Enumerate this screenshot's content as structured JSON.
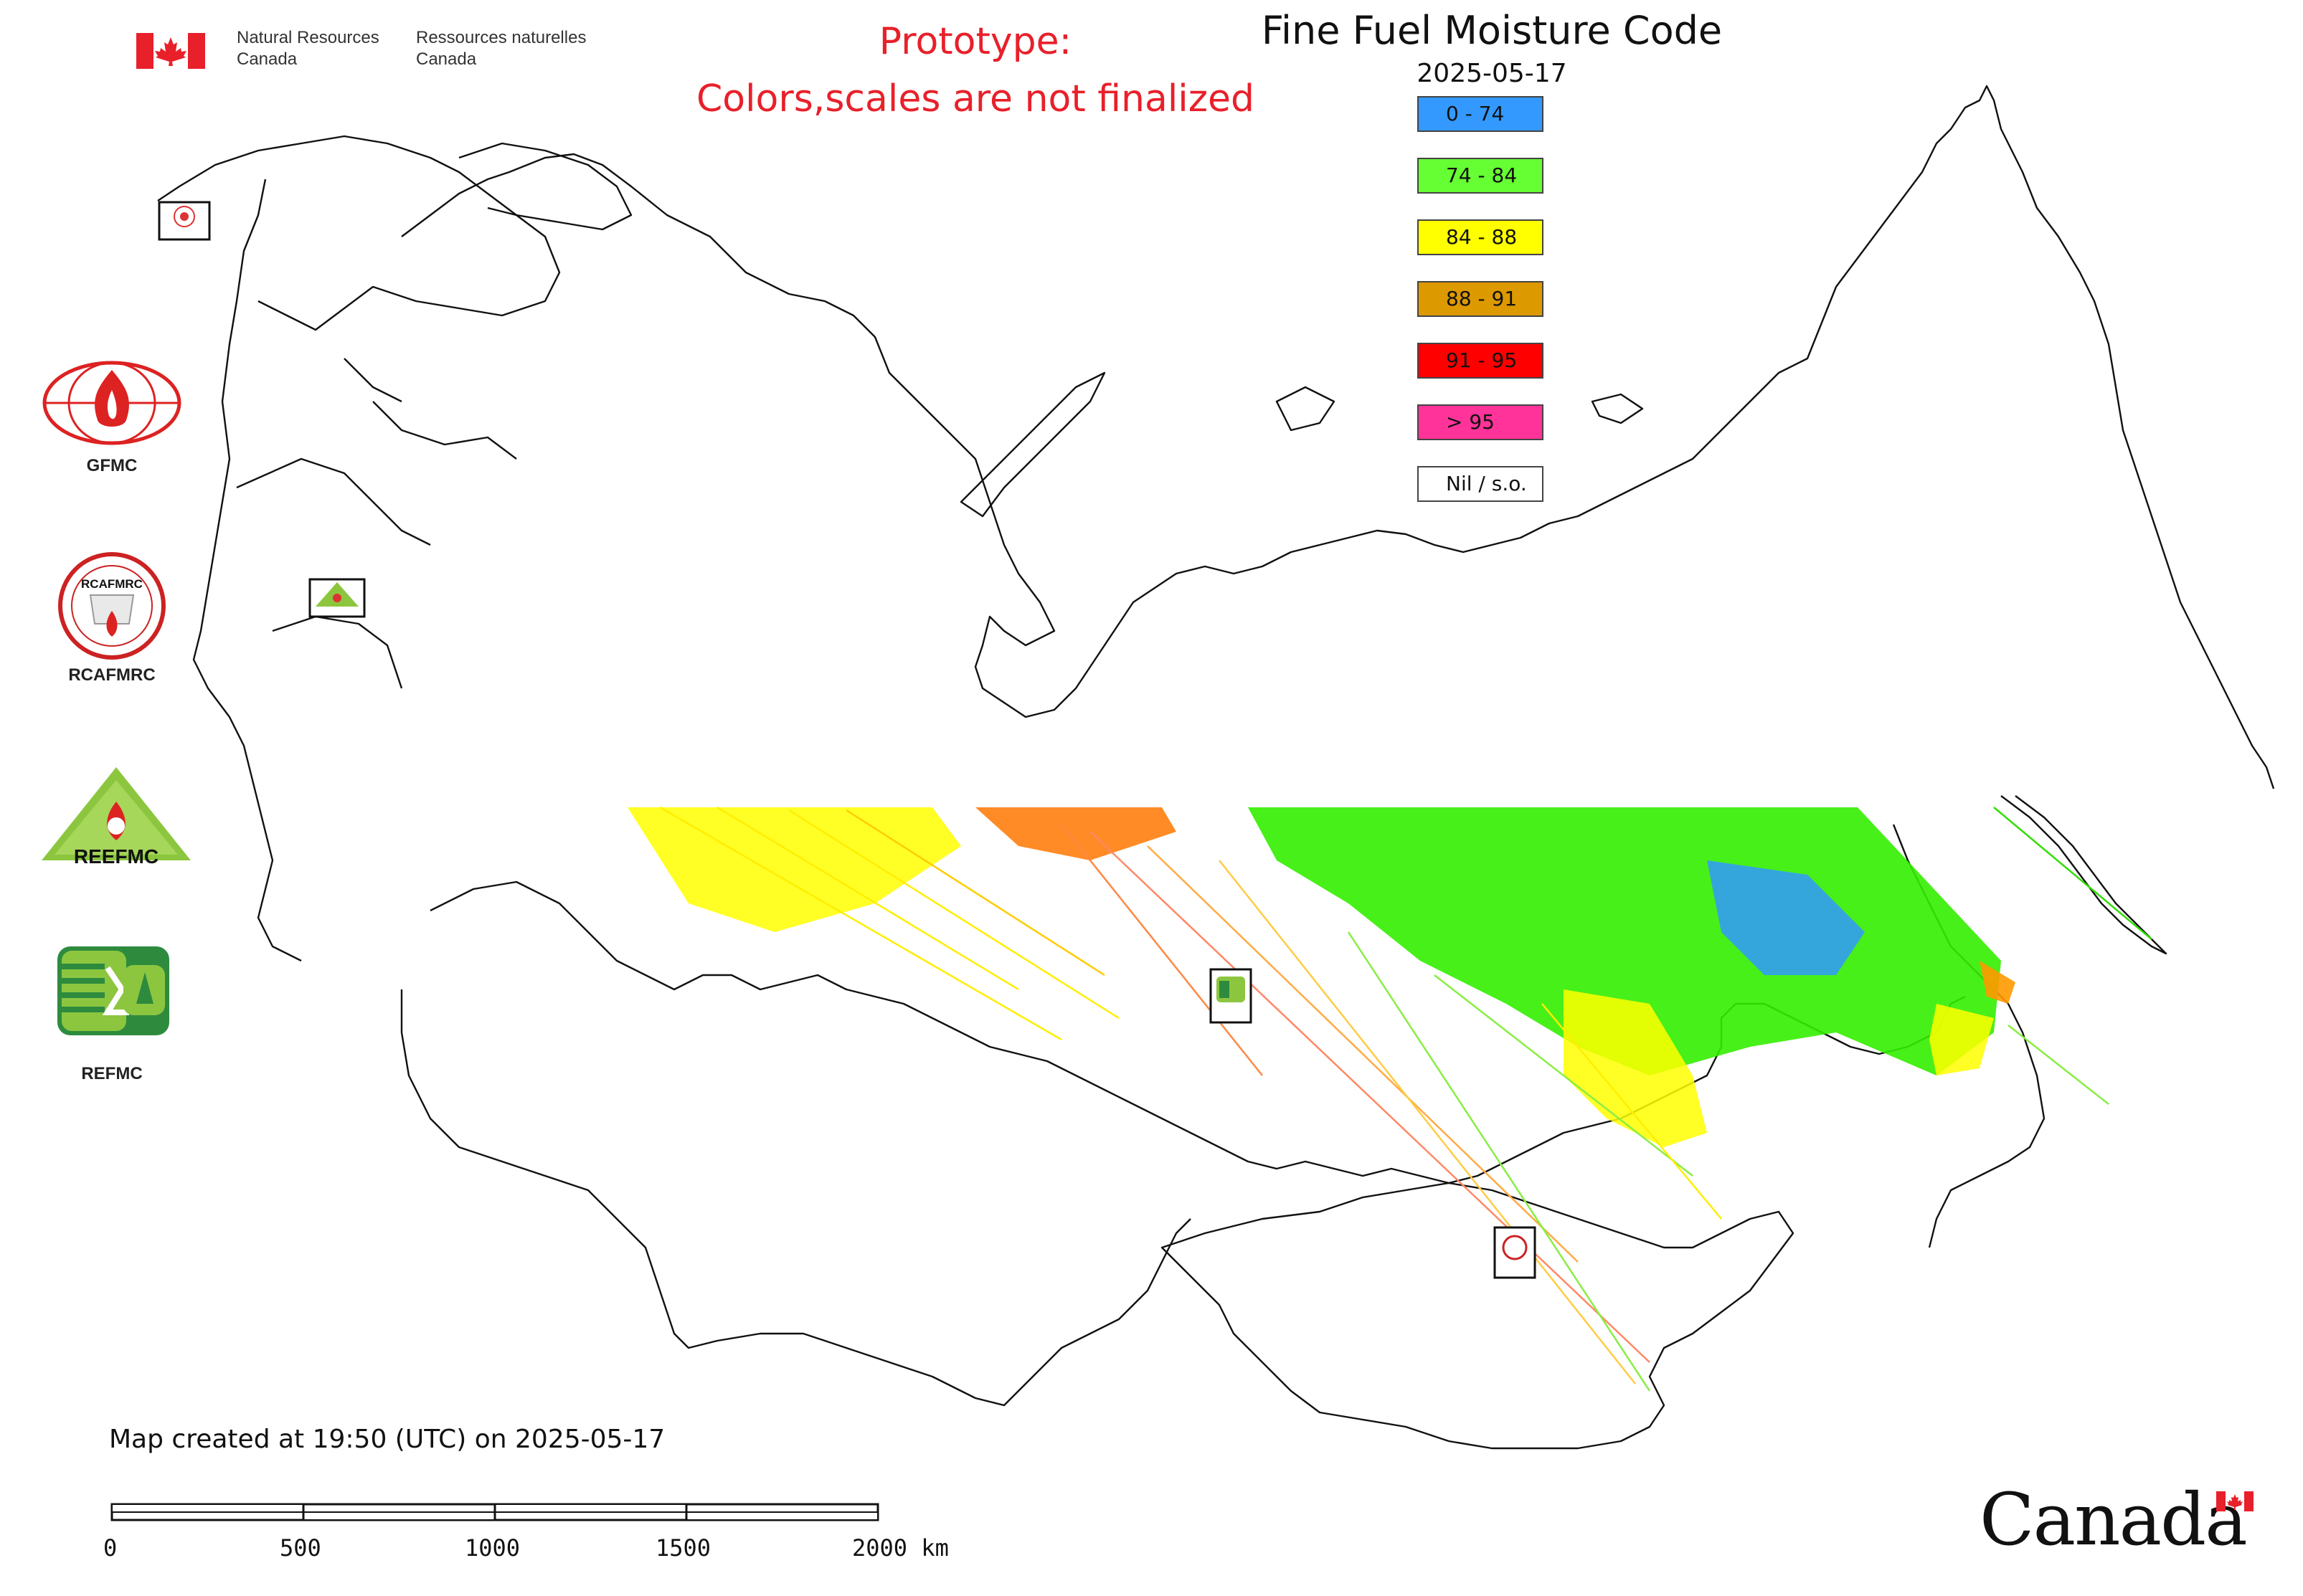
{
  "header": {
    "org_en_line1": "Natural Resources",
    "org_en_line2": "Canada",
    "org_fr_line1": "Ressources naturelles",
    "org_fr_line2": "Canada"
  },
  "notice": {
    "line1": "Prototype:",
    "line2": "Colors,scales are not finalized",
    "color": "#e8202a"
  },
  "title": "Fine Fuel Moisture Code",
  "date": "2025-05-17",
  "legend": {
    "items": [
      {
        "label": "0 - 74",
        "color": "#3399ff"
      },
      {
        "label": "74 - 84",
        "color": "#66ff33"
      },
      {
        "label": "84 - 88",
        "color": "#ffff00"
      },
      {
        "label": "88 - 91",
        "color": "#dd9900"
      },
      {
        "label": "91 - 95",
        "color": "#ff0000"
      },
      {
        "label": "> 95",
        "color": "#ff3399"
      },
      {
        "label": "Nil / s.o.",
        "color": "#ffffff"
      }
    ]
  },
  "logos": [
    {
      "label": "GFMC",
      "icon": "gfmc-flame-globe-icon"
    },
    {
      "label": "RCAFMRC",
      "icon": "rcafmrc-seal-icon",
      "inner_text": "RCAFMRC"
    },
    {
      "label": "",
      "icon": "reefmc-triangle-icon",
      "inner_text": "REEFMC"
    },
    {
      "label": "REFMC",
      "icon": "refmc-sigma-icon"
    }
  ],
  "footer": {
    "created": "Map created at 19:50 (UTC) on 2025-05-17",
    "scale": {
      "ticks": [
        "0",
        "500",
        "1000",
        "1500",
        "2000 km"
      ]
    }
  },
  "wordmark": {
    "text": "Canada",
    "flag_color": "#e8202a"
  }
}
